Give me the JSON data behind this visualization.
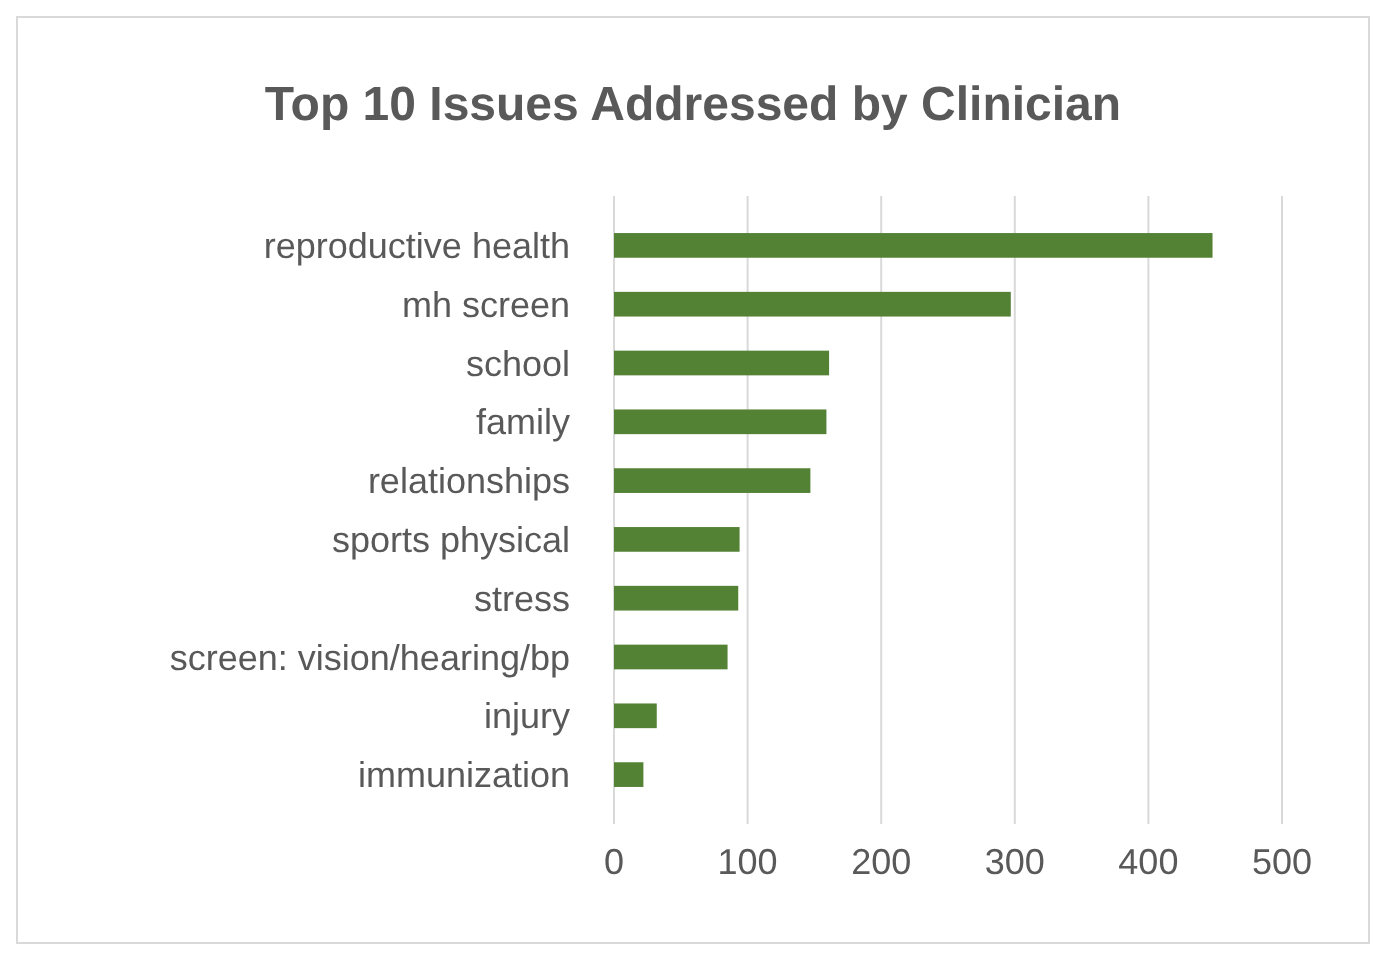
{
  "chart_data": {
    "type": "bar",
    "orientation": "horizontal",
    "title": "Top 10 Issues Addressed by Clinician",
    "categories": [
      "reproductive health",
      "mh screen",
      "school",
      "family",
      "relationships",
      "sports physical",
      "stress",
      "screen: vision/hearing/bp",
      "injury",
      "immunization"
    ],
    "values": [
      448,
      297,
      161,
      159,
      147,
      94,
      93,
      85,
      32,
      22
    ],
    "color": "#548235",
    "xlim": [
      0,
      500
    ],
    "xticks": [
      0,
      100,
      200,
      300,
      400,
      500
    ],
    "grid": "x"
  }
}
